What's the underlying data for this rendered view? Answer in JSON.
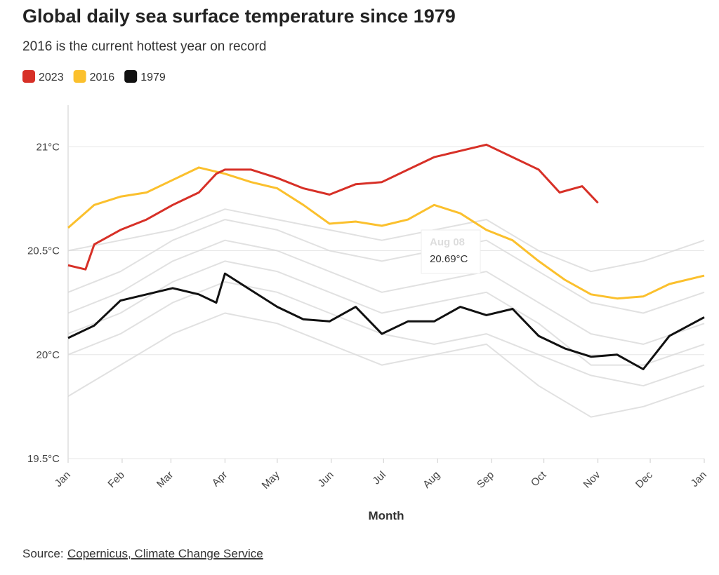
{
  "chart_data": {
    "type": "line",
    "title": "Global daily sea surface temperature since 1979",
    "subtitle": "2016 is the current hottest year on record",
    "x_label": "Month",
    "source_prefix": "Source:",
    "source_link": "Copernicus, Climate Change Service",
    "tooltip": {
      "title": "Aug 08",
      "text": "20.69°C"
    },
    "xlim": [
      0,
      365
    ],
    "xticks": [
      {
        "value": 0,
        "label": "Jan"
      },
      {
        "value": 31,
        "label": "Feb"
      },
      {
        "value": 59,
        "label": "Mar"
      },
      {
        "value": 90,
        "label": "Apr"
      },
      {
        "value": 120,
        "label": "May"
      },
      {
        "value": 151,
        "label": "Jun"
      },
      {
        "value": 181,
        "label": "Jul"
      },
      {
        "value": 212,
        "label": "Aug"
      },
      {
        "value": 243,
        "label": "Sep"
      },
      {
        "value": 273,
        "label": "Oct"
      },
      {
        "value": 304,
        "label": "Nov"
      },
      {
        "value": 334,
        "label": "Dec"
      },
      {
        "value": 365,
        "label": "Jan"
      }
    ],
    "ylim": [
      19.5,
      21.2
    ],
    "yticks": [
      {
        "value": 19.5,
        "label": "19.5°C"
      },
      {
        "value": 20,
        "label": "20°C"
      },
      {
        "value": 20.5,
        "label": "20.5°C"
      },
      {
        "value": 21,
        "label": "21°C"
      }
    ],
    "grid": true,
    "series": [
      {
        "name": "2023",
        "color": "#d73027",
        "x": [
          0,
          10,
          15,
          30,
          45,
          60,
          75,
          85,
          90,
          105,
          120,
          135,
          150,
          165,
          180,
          195,
          210,
          225,
          240,
          255,
          270,
          282,
          295,
          304
        ],
        "values": [
          20.43,
          20.41,
          20.53,
          20.6,
          20.65,
          20.72,
          20.78,
          20.87,
          20.89,
          20.89,
          20.85,
          20.8,
          20.77,
          20.82,
          20.83,
          20.89,
          20.95,
          20.98,
          21.01,
          20.95,
          20.89,
          20.78,
          20.81,
          20.73
        ]
      },
      {
        "name": "2016",
        "color": "#fbc02d",
        "x": [
          0,
          15,
          30,
          45,
          60,
          75,
          90,
          105,
          120,
          135,
          150,
          165,
          180,
          195,
          210,
          225,
          240,
          255,
          270,
          285,
          300,
          315,
          330,
          345,
          365
        ],
        "values": [
          20.61,
          20.72,
          20.76,
          20.78,
          20.84,
          20.9,
          20.87,
          20.83,
          20.8,
          20.72,
          20.63,
          20.64,
          20.62,
          20.65,
          20.72,
          20.68,
          20.6,
          20.55,
          20.45,
          20.36,
          20.29,
          20.27,
          20.28,
          20.34,
          20.38
        ]
      },
      {
        "name": "1979",
        "color": "#111111",
        "x": [
          0,
          15,
          30,
          45,
          60,
          75,
          85,
          90,
          105,
          120,
          135,
          150,
          165,
          180,
          195,
          210,
          225,
          240,
          255,
          270,
          285,
          300,
          315,
          330,
          345,
          365
        ],
        "values": [
          20.08,
          20.14,
          20.26,
          20.29,
          20.32,
          20.29,
          20.25,
          20.39,
          20.31,
          20.23,
          20.17,
          20.16,
          20.23,
          20.1,
          20.16,
          20.16,
          20.23,
          20.19,
          20.22,
          20.09,
          20.03,
          19.99,
          20.0,
          19.93,
          20.09,
          20.18
        ]
      },
      {
        "color": "#d9d9d9",
        "x": [
          0,
          30,
          60,
          90,
          120,
          150,
          180,
          210,
          240,
          270,
          300,
          330,
          365
        ],
        "values": [
          20.0,
          20.1,
          20.25,
          20.35,
          20.3,
          20.2,
          20.1,
          20.05,
          20.1,
          20.0,
          19.9,
          19.85,
          19.95
        ]
      },
      {
        "color": "#d9d9d9",
        "x": [
          0,
          30,
          60,
          90,
          120,
          150,
          180,
          210,
          240,
          270,
          300,
          330,
          365
        ],
        "values": [
          20.2,
          20.3,
          20.45,
          20.55,
          20.5,
          20.4,
          20.3,
          20.35,
          20.4,
          20.25,
          20.1,
          20.05,
          20.15
        ]
      },
      {
        "color": "#d9d9d9",
        "x": [
          0,
          30,
          60,
          90,
          120,
          150,
          180,
          210,
          240,
          270,
          300,
          330,
          365
        ],
        "values": [
          20.3,
          20.4,
          20.55,
          20.65,
          20.6,
          20.5,
          20.45,
          20.5,
          20.55,
          20.4,
          20.25,
          20.2,
          20.3
        ]
      },
      {
        "color": "#d9d9d9",
        "x": [
          0,
          30,
          60,
          90,
          120,
          150,
          180,
          210,
          240,
          270,
          300,
          330,
          365
        ],
        "values": [
          19.8,
          19.95,
          20.1,
          20.2,
          20.15,
          20.05,
          19.95,
          20.0,
          20.05,
          19.85,
          19.7,
          19.75,
          19.85
        ]
      },
      {
        "color": "#d9d9d9",
        "x": [
          0,
          30,
          60,
          90,
          120,
          150,
          180,
          210,
          240,
          270,
          300,
          330,
          365
        ],
        "values": [
          20.5,
          20.55,
          20.6,
          20.7,
          20.65,
          20.6,
          20.55,
          20.6,
          20.65,
          20.5,
          20.4,
          20.45,
          20.55
        ]
      },
      {
        "color": "#d9d9d9",
        "x": [
          0,
          30,
          60,
          90,
          120,
          150,
          180,
          210,
          240,
          270,
          300,
          330,
          365
        ],
        "values": [
          20.1,
          20.2,
          20.35,
          20.45,
          20.4,
          20.3,
          20.2,
          20.25,
          20.3,
          20.15,
          19.95,
          19.95,
          20.05
        ]
      }
    ]
  }
}
